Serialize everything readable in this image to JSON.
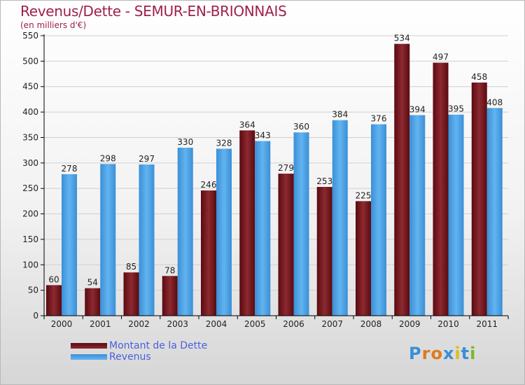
{
  "title": "Revenus/Dette - SEMUR-EN-BRIONNAIS",
  "subtitle": "(en milliers d'€)",
  "legend": {
    "debt_label": "Montant de la Dette",
    "revenue_label": "Revenus"
  },
  "logo_text": "Proxiti",
  "colors": {
    "debt": "#7a1a1f",
    "revenue": "#4aa3e8",
    "title": "#a0204c",
    "legend_text": "#4a5fe0"
  },
  "chart_data": {
    "type": "bar",
    "title": "Revenus/Dette - SEMUR-EN-BRIONNAIS",
    "categories": [
      "2000",
      "2001",
      "2002",
      "2003",
      "2004",
      "2005",
      "2006",
      "2007",
      "2008",
      "2009",
      "2010",
      "2011"
    ],
    "series": [
      {
        "name": "Montant de la Dette",
        "values": [
          60,
          54,
          85,
          78,
          246,
          364,
          279,
          253,
          225,
          534,
          497,
          458
        ]
      },
      {
        "name": "Revenus",
        "values": [
          278,
          298,
          297,
          330,
          328,
          343,
          360,
          384,
          376,
          394,
          395,
          408
        ]
      }
    ],
    "ylim": [
      0,
      550
    ],
    "yticks": [
      0,
      50,
      100,
      150,
      200,
      250,
      300,
      350,
      400,
      450,
      500,
      550
    ],
    "grid": true,
    "legend_position": "bottom-left"
  }
}
